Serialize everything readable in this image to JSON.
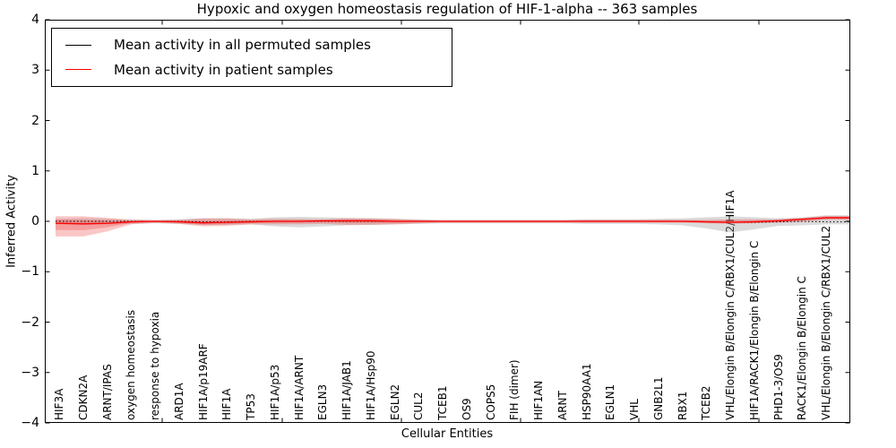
{
  "chart_data": {
    "type": "line",
    "title": "Hypoxic and oxygen homeostasis regulation of HIF-1-alpha -- 363 samples",
    "xlabel": "Cellular Entities",
    "ylabel": "Inferred Activity",
    "ylim": [
      -4,
      4
    ],
    "yticks": [
      -4,
      -3,
      -2,
      -1,
      0,
      1,
      2,
      3,
      4
    ],
    "ytick_labels": [
      "−4",
      "−3",
      "−2",
      "−1",
      "0",
      "1",
      "2",
      "3",
      "4"
    ],
    "grid": false,
    "legend_position": "upper left",
    "categories": [
      "HIF3A",
      "CDKN2A",
      "ARNT/IPAS",
      "oxygen homeostasis",
      "response to hypoxia",
      "ARD1A",
      "HIF1A/p19ARF",
      "HIF1A",
      "TP53",
      "HIF1A/p53",
      "HIF1A/ARNT",
      "EGLN3",
      "HIF1A/JAB1",
      "HIF1A/Hsp90",
      "EGLN2",
      "CUL2",
      "TCEB1",
      "OS9",
      "COPS5",
      "FIH (dimer)",
      "HIF1AN",
      "ARNT",
      "HSP90AA1",
      "EGLN1",
      "VHL",
      "GNB2L1",
      "RBX1",
      "TCEB2",
      "VHL/Elongin B/Elongin C/RBX1/CUL2/HIF1A",
      "HIF1A/RACK1/Elongin B/Elongin C",
      "PHD1-3/OS9",
      "RACK1/Elongin B/Elongin C",
      "VHL/Elongin B/Elongin C/RBX1/CUL2"
    ],
    "series": [
      {
        "name": "Mean activity in all permuted samples",
        "color": "#000000",
        "line_style": "dotted",
        "values": [
          0,
          0,
          0,
          0,
          0,
          0,
          -0.01,
          -0.01,
          0,
          0,
          0,
          0,
          0,
          0,
          0,
          0,
          0,
          0,
          0,
          0,
          0,
          0,
          0,
          0,
          0,
          0,
          0,
          -0.01,
          -0.02,
          -0.02,
          -0.01,
          0,
          -0.01
        ]
      },
      {
        "name": "Mean activity in patient samples",
        "color": "#ff0000",
        "line_style": "solid",
        "values": [
          -0.04,
          -0.05,
          -0.04,
          -0.01,
          0,
          -0.01,
          -0.03,
          -0.02,
          -0.01,
          0,
          0,
          0.01,
          0.01,
          0.01,
          0,
          0,
          0,
          0,
          0,
          0,
          0,
          0,
          0,
          0,
          0,
          0,
          0,
          -0.01,
          -0.02,
          -0.01,
          0.01,
          0.04,
          0.07
        ]
      }
    ],
    "bands": [
      {
        "name": "permuted samples activity range",
        "color": "#999999",
        "opacity": 0.35,
        "upper": [
          0.05,
          0.06,
          0.05,
          0.04,
          0.03,
          0.04,
          0.06,
          0.06,
          0.05,
          0.08,
          0.09,
          0.08,
          0.07,
          0.06,
          0.05,
          0.04,
          0.03,
          0.03,
          0.03,
          0.03,
          0.03,
          0.03,
          0.04,
          0.04,
          0.04,
          0.05,
          0.06,
          0.08,
          0.1,
          0.08,
          0.06,
          0.08,
          0.12
        ],
        "lower": [
          -0.06,
          -0.07,
          -0.06,
          -0.05,
          -0.04,
          -0.05,
          -0.07,
          -0.07,
          -0.06,
          -0.1,
          -0.12,
          -0.1,
          -0.08,
          -0.07,
          -0.06,
          -0.05,
          -0.04,
          -0.04,
          -0.04,
          -0.04,
          -0.04,
          -0.04,
          -0.05,
          -0.05,
          -0.05,
          -0.06,
          -0.08,
          -0.14,
          -0.22,
          -0.16,
          -0.09,
          -0.08,
          -0.06
        ]
      },
      {
        "name": "patient samples activity range",
        "color": "#ee3333",
        "opacity": 0.28,
        "upper": [
          0.1,
          0.1,
          0.07,
          0.03,
          0.02,
          0.03,
          0.06,
          0.06,
          0.04,
          0.05,
          0.05,
          0.04,
          0.06,
          0.06,
          0.05,
          0.03,
          0.02,
          0.02,
          0.02,
          0.02,
          0.02,
          0.02,
          0.03,
          0.03,
          0.03,
          0.03,
          0.03,
          0.03,
          0.04,
          0.04,
          0.04,
          0.07,
          0.11
        ],
        "lower": [
          -0.3,
          -0.3,
          -0.2,
          -0.06,
          -0.03,
          -0.05,
          -0.1,
          -0.09,
          -0.06,
          -0.06,
          -0.06,
          -0.05,
          -0.07,
          -0.07,
          -0.06,
          -0.04,
          -0.03,
          -0.03,
          -0.03,
          -0.03,
          -0.03,
          -0.03,
          -0.03,
          -0.03,
          -0.03,
          -0.03,
          -0.03,
          -0.04,
          -0.05,
          -0.04,
          -0.03,
          -0.01,
          0.03
        ]
      }
    ]
  }
}
